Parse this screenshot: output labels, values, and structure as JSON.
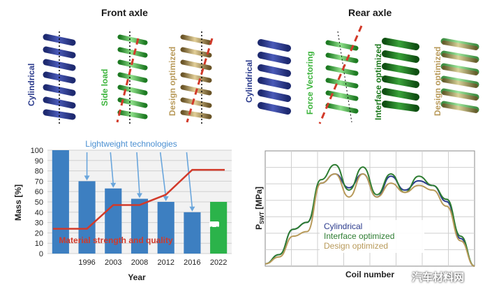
{
  "front_axle": {
    "title": "Front axle",
    "springs": [
      {
        "label": "Cylindrical",
        "color": "#2a3a8c"
      },
      {
        "label": "Side load",
        "color": "#3cb43c"
      },
      {
        "label": "Design optimized",
        "color": "#b89a5a"
      }
    ]
  },
  "rear_axle": {
    "title": "Rear axle",
    "springs": [
      {
        "label": "Cylindrical",
        "color": "#2a3a8c"
      },
      {
        "label": "Force Vectoring",
        "color": "#3cb43c"
      },
      {
        "label": "Interface optimized",
        "color": "#1e7a1e"
      },
      {
        "label": "Design optimized",
        "color": "#b89a5a"
      }
    ]
  },
  "chart_data": [
    {
      "type": "bar",
      "annotation_top": "Lightweight technologies",
      "annotation_bottom": "Material strength and quality",
      "xlabel": "Year",
      "ylabel": "Mass [%]",
      "ylim": [
        0,
        100
      ],
      "yticks": [
        "0",
        "10",
        "20",
        "30",
        "40",
        "50",
        "60",
        "70",
        "80",
        "90",
        "100"
      ],
      "categories": [
        "",
        "1996",
        "2003",
        "2008",
        "2012",
        "2016",
        "2022"
      ],
      "values": [
        100,
        70,
        63,
        53,
        50,
        40,
        50
      ],
      "bar_colors": [
        "#3d7fc1",
        "#3d7fc1",
        "#3d7fc1",
        "#3d7fc1",
        "#3d7fc1",
        "#3d7fc1",
        "#2bb34a"
      ],
      "line": {
        "name": "Material strength and quality",
        "values": [
          24,
          24,
          47,
          47,
          57,
          81,
          81
        ],
        "color": "#d23a2a"
      }
    },
    {
      "type": "line",
      "xlabel": "Coil number",
      "ylabel": "P_SWT [MPa]",
      "ylabel_main": "P",
      "ylabel_sub": "SWT",
      "ylabel_unit": " [MPa]",
      "series": [
        {
          "name": "Cylindrical",
          "color": "#2a3a8c",
          "values": [
            2,
            10,
            32,
            38,
            72,
            80,
            68,
            80,
            60,
            78,
            66,
            74,
            70,
            56,
            24,
            0
          ]
        },
        {
          "name": "Interface optimized",
          "color": "#2e7d32",
          "values": [
            2,
            10,
            32,
            38,
            75,
            88,
            66,
            86,
            62,
            80,
            64,
            78,
            70,
            58,
            26,
            0
          ]
        },
        {
          "name": "Design optimized",
          "color": "#b89a5a",
          "values": [
            2,
            8,
            26,
            30,
            72,
            80,
            60,
            80,
            60,
            72,
            64,
            70,
            66,
            52,
            22,
            0
          ]
        }
      ]
    }
  ],
  "watermark": "汽车材料网"
}
